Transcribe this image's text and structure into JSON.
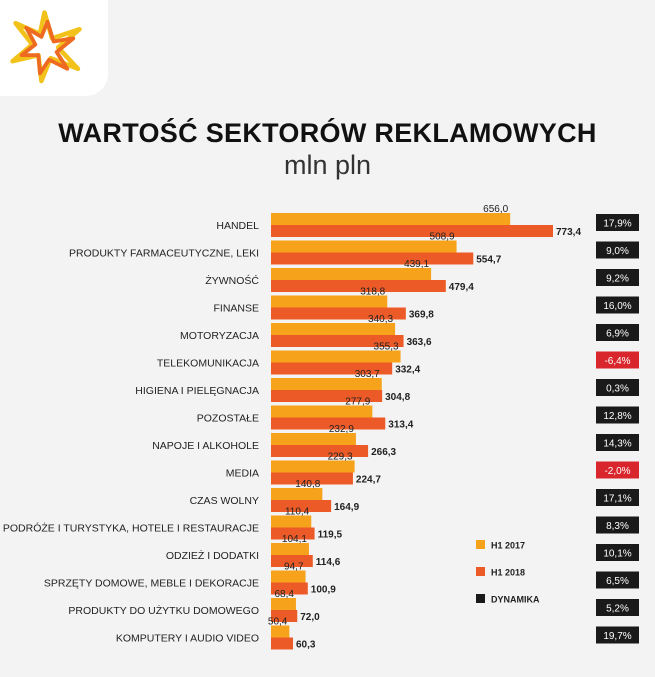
{
  "header": {
    "title": "WARTOŚĆ SEKTORÓW REKLAMOWYCH",
    "subtitle": "mln pln"
  },
  "colors": {
    "h1_2017": "#f7a21b",
    "h1_2018": "#ec5b27",
    "dynamika": "#1a1a1a",
    "dynamika_negative": "#d8262c",
    "logo_yellow": "#f2c21a",
    "logo_orange": "#ee6a20"
  },
  "chart_data": {
    "type": "bar",
    "orientation": "horizontal",
    "title": "WARTOŚĆ SEKTORÓW REKLAMOWYCH",
    "subtitle": "mln pln",
    "legend_position": "right",
    "legend": [
      "H1 2017",
      "H1 2018",
      "DYNAMIKA"
    ],
    "categories": [
      "HANDEL",
      "PRODUKTY FARMACEUTYCZNE, LEKI",
      "ŻYWNOŚĆ",
      "FINANSE",
      "MOTORYZACJA",
      "TELEKOMUNIKACJA",
      "HIGIENA I PIELĘGNACJA",
      "POZOSTAŁE",
      "NAPOJE I ALKOHOLE",
      "MEDIA",
      "CZAS WOLNY",
      "PODRÓŻE I TURYSTYKA, HOTELE I RESTAURACJE",
      "ODZIEŻ I DODATKI",
      "SPRZĘTY DOMOWE, MEBLE I DEKORACJE",
      "PRODUKTY DO UŻYTKU DOMOWEGO",
      "KOMPUTERY I AUDIO VIDEO"
    ],
    "series": [
      {
        "name": "H1 2017",
        "values": [
          656.0,
          508.9,
          439.1,
          318.8,
          340.3,
          355.3,
          303.7,
          277.9,
          232.9,
          229.3,
          140.8,
          110.4,
          104.1,
          94.7,
          68.4,
          50.4
        ],
        "labels": [
          "656,0",
          "508,9",
          "439,1",
          "318,8",
          "340,3",
          "355,3",
          "303,7",
          "277,9",
          "232,9",
          "229,3",
          "140,8",
          "110,4",
          "104,1",
          "94,7",
          "68,4",
          "50,4"
        ]
      },
      {
        "name": "H1 2018",
        "values": [
          773.4,
          554.7,
          479.4,
          369.8,
          363.6,
          332.4,
          304.8,
          313.4,
          266.3,
          224.7,
          164.9,
          119.5,
          114.6,
          100.9,
          72.0,
          60.3
        ],
        "labels": [
          "773,4",
          "554,7",
          "479,4",
          "369,8",
          "363,6",
          "332,4",
          "304,8",
          "313,4",
          "266,3",
          "224,7",
          "164,9",
          "119,5",
          "114,6",
          "100,9",
          "72,0",
          "60,3"
        ]
      }
    ],
    "dynamika": [
      "17,9%",
      "9,0%",
      "9,2%",
      "16,0%",
      "6,9%",
      "-6,4%",
      "0,3%",
      "12,8%",
      "14,3%",
      "-2,0%",
      "17,1%",
      "8,3%",
      "10,1%",
      "6,5%",
      "5,2%",
      "19,7%"
    ],
    "xlim": [
      0,
      773.4
    ]
  }
}
